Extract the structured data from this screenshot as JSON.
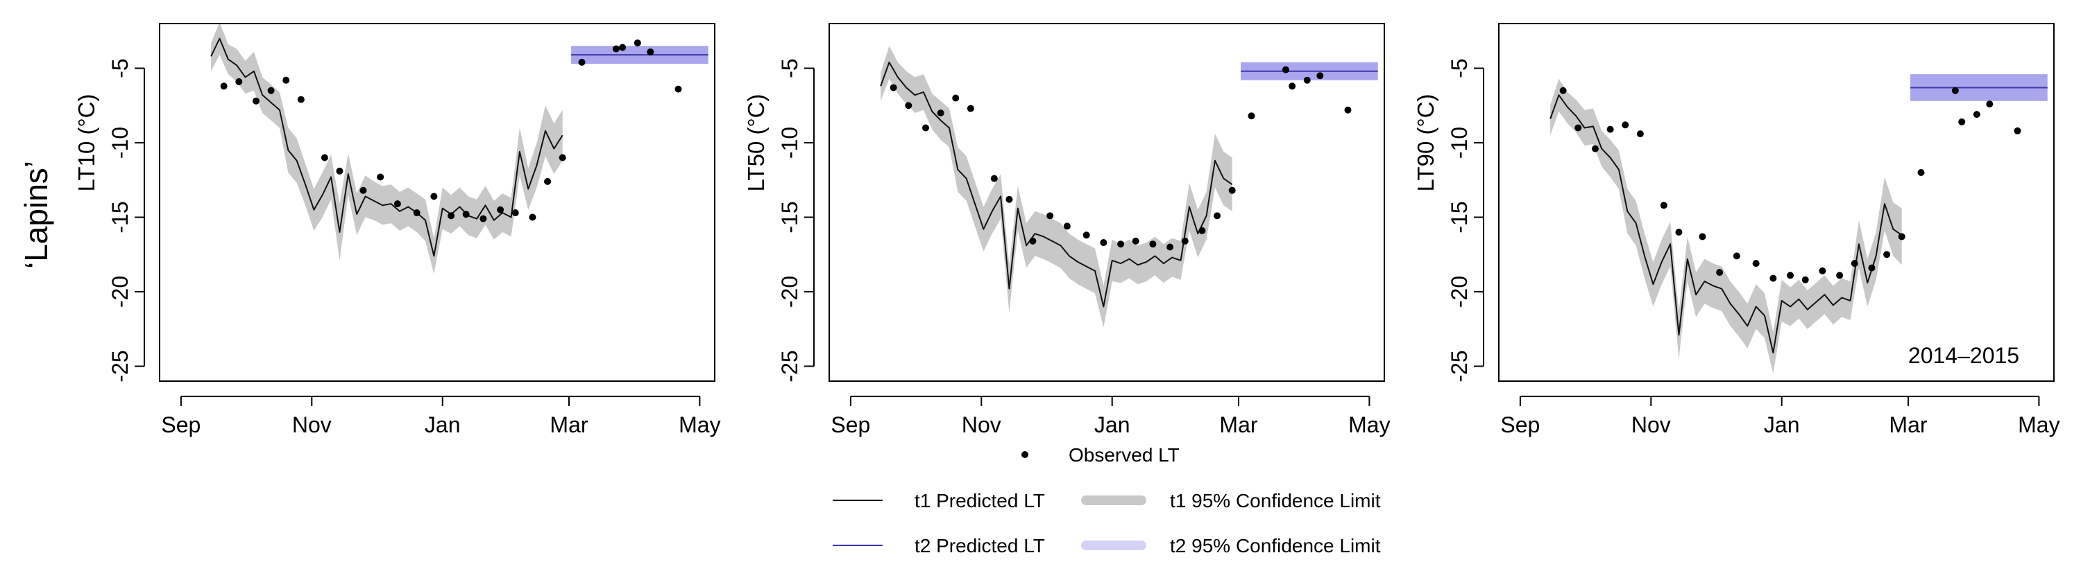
{
  "figure": {
    "cultivar_label": "‘Lapins’",
    "season_label": "2014–2015",
    "colors": {
      "t1_line": "#111111",
      "t1_band": "#c8c8c8",
      "t2_line": "#3a36a8",
      "t2_band": "#a9a6ee",
      "t2_band_legend": "#d4d2f6",
      "observed": "#000000"
    }
  },
  "legend": {
    "observed": "Observed LT",
    "t1_line": "t1 Predicted LT",
    "t1_band": "t1 95% Confidence Limit",
    "t2_line": "t2 Predicted LT",
    "t2_band": "t2 95% Confidence Limit"
  },
  "chart_data": [
    {
      "type": "line",
      "ylabel": "LT10 (°C)",
      "x_ticks": [
        "Sep",
        "Nov",
        "Jan",
        "Mar",
        "May"
      ],
      "x_tick_days": [
        0,
        61,
        122,
        181,
        242
      ],
      "y_ticks": [
        "-5",
        "-10",
        "-15",
        "-20",
        "-25"
      ],
      "y_tick_values": [
        -5,
        -10,
        -15,
        -20,
        -25
      ],
      "ylim": [
        -26,
        -2
      ],
      "xlim": [
        -10,
        249
      ],
      "t1_predicted": {
        "x": [
          14,
          18,
          22,
          26,
          30,
          34,
          38,
          42,
          46,
          50,
          54,
          58,
          62,
          66,
          70,
          74,
          78,
          82,
          86,
          90,
          94,
          98,
          102,
          106,
          110,
          114,
          118,
          122,
          126,
          130,
          134,
          138,
          142,
          146,
          150,
          154,
          158,
          162,
          166,
          170,
          174,
          178
        ],
        "y": [
          -4.2,
          -3.0,
          -4.4,
          -4.8,
          -5.6,
          -5.2,
          -6.8,
          -7.3,
          -7.8,
          -10.5,
          -11.2,
          -12.8,
          -14.5,
          -13.5,
          -12.3,
          -16.0,
          -12.1,
          -14.8,
          -13.6,
          -13.9,
          -14.2,
          -14.1,
          -14.6,
          -14.3,
          -14.7,
          -15.2,
          -17.6,
          -14.4,
          -14.8,
          -14.3,
          -14.9,
          -15.1,
          -14.2,
          -15.2,
          -14.7,
          -15.0,
          -10.6,
          -13.1,
          -11.5,
          -9.2,
          -10.4,
          -9.5
        ],
        "ci_low": [
          -5.2,
          -4.1,
          -5.4,
          -5.9,
          -6.7,
          -6.5,
          -8.0,
          -8.5,
          -9.0,
          -12.0,
          -12.7,
          -14.2,
          -15.9,
          -15.0,
          -13.8,
          -17.9,
          -13.5,
          -16.2,
          -15.0,
          -15.2,
          -15.5,
          -15.4,
          -15.9,
          -15.6,
          -16.0,
          -16.6,
          -18.8,
          -15.8,
          -16.1,
          -15.6,
          -16.2,
          -16.4,
          -15.5,
          -16.5,
          -16.0,
          -16.3,
          -12.2,
          -14.5,
          -13.0,
          -10.9,
          -12.1,
          -11.2
        ],
        "ci_high": [
          -3.3,
          -1.9,
          -3.4,
          -3.7,
          -4.5,
          -3.9,
          -5.6,
          -6.1,
          -6.6,
          -9.0,
          -9.7,
          -11.4,
          -13.1,
          -12.0,
          -10.8,
          -14.1,
          -10.7,
          -13.4,
          -12.2,
          -12.6,
          -12.9,
          -12.8,
          -13.3,
          -13.0,
          -13.4,
          -13.8,
          -16.4,
          -13.0,
          -13.5,
          -13.0,
          -13.6,
          -13.8,
          -12.9,
          -13.9,
          -13.4,
          -13.7,
          -9.0,
          -11.7,
          -10.0,
          -7.5,
          -8.7,
          -7.8
        ]
      },
      "t2_predicted": {
        "x_start": 182,
        "x_end": 246,
        "y": -4.1,
        "ci_low": -4.7,
        "ci_high": -3.5
      },
      "observed": {
        "x": [
          20,
          27,
          35,
          42,
          49,
          56,
          67,
          74,
          85,
          93,
          101,
          110,
          118,
          126,
          133,
          141,
          149,
          156,
          164,
          171,
          178,
          187,
          203,
          206,
          213,
          219,
          232
        ],
        "y": [
          -6.2,
          -5.9,
          -7.2,
          -6.5,
          -5.8,
          -7.1,
          -11.0,
          -11.9,
          -13.2,
          -12.3,
          -14.1,
          -14.7,
          -13.6,
          -14.9,
          -14.8,
          -15.1,
          -14.5,
          -14.7,
          -15.0,
          -12.6,
          -11.0,
          -4.6,
          -3.7,
          -3.6,
          -3.3,
          -3.9,
          -6.4
        ]
      }
    },
    {
      "type": "line",
      "ylabel": "LT50 (°C)",
      "x_ticks": [
        "Sep",
        "Nov",
        "Jan",
        "Mar",
        "May"
      ],
      "x_tick_days": [
        0,
        61,
        122,
        181,
        242
      ],
      "y_ticks": [
        "-5",
        "-10",
        "-15",
        "-20",
        "-25"
      ],
      "y_tick_values": [
        -5,
        -10,
        -15,
        -20,
        -25
      ],
      "ylim": [
        -26,
        -2
      ],
      "xlim": [
        -10,
        249
      ],
      "t1_predicted": {
        "x": [
          14,
          18,
          22,
          26,
          30,
          34,
          38,
          42,
          46,
          50,
          54,
          58,
          62,
          66,
          70,
          74,
          78,
          82,
          86,
          90,
          94,
          98,
          102,
          106,
          110,
          114,
          118,
          122,
          126,
          130,
          134,
          138,
          142,
          146,
          150,
          154,
          158,
          162,
          166,
          170,
          174,
          178
        ],
        "y": [
          -6.2,
          -4.6,
          -5.6,
          -6.3,
          -6.8,
          -6.6,
          -7.9,
          -8.5,
          -9.0,
          -11.8,
          -12.4,
          -14.1,
          -15.8,
          -14.6,
          -13.6,
          -19.8,
          -14.4,
          -16.9,
          -16.1,
          -16.3,
          -16.6,
          -16.9,
          -17.6,
          -18.0,
          -18.3,
          -18.6,
          -21.0,
          -17.9,
          -18.1,
          -17.8,
          -18.2,
          -18.0,
          -17.6,
          -18.1,
          -17.7,
          -17.9,
          -14.3,
          -16.1,
          -14.9,
          -11.2,
          -12.4,
          -12.8
        ],
        "ci_low": [
          -7.2,
          -5.7,
          -6.7,
          -7.4,
          -8.0,
          -7.8,
          -9.1,
          -9.8,
          -10.3,
          -13.3,
          -13.9,
          -15.6,
          -17.3,
          -16.1,
          -15.1,
          -21.4,
          -15.9,
          -18.4,
          -17.6,
          -17.8,
          -18.1,
          -18.4,
          -19.1,
          -19.5,
          -19.8,
          -20.1,
          -22.4,
          -19.3,
          -19.4,
          -19.1,
          -19.5,
          -19.3,
          -18.9,
          -19.4,
          -19.0,
          -19.2,
          -15.9,
          -17.7,
          -16.5,
          -13.0,
          -14.2,
          -14.6
        ],
        "ci_high": [
          -5.3,
          -3.5,
          -4.6,
          -5.2,
          -5.6,
          -5.4,
          -6.7,
          -7.2,
          -7.7,
          -10.3,
          -10.9,
          -12.6,
          -14.3,
          -13.1,
          -12.1,
          -18.2,
          -12.9,
          -15.4,
          -14.6,
          -14.8,
          -15.1,
          -15.4,
          -16.1,
          -16.5,
          -16.8,
          -17.1,
          -19.6,
          -16.5,
          -16.8,
          -16.5,
          -16.9,
          -16.7,
          -16.3,
          -16.8,
          -16.4,
          -16.6,
          -12.7,
          -14.5,
          -13.3,
          -9.4,
          -10.6,
          -11.0
        ]
      },
      "t2_predicted": {
        "x_start": 182,
        "x_end": 246,
        "y": -5.2,
        "ci_low": -5.8,
        "ci_high": -4.6
      },
      "observed": {
        "x": [
          20,
          27,
          35,
          42,
          49,
          56,
          67,
          74,
          85,
          93,
          101,
          110,
          118,
          126,
          133,
          141,
          149,
          156,
          164,
          171,
          178,
          187,
          203,
          206,
          213,
          219,
          232
        ],
        "y": [
          -6.3,
          -7.5,
          -9.0,
          -8.0,
          -7.0,
          -7.7,
          -12.4,
          -13.8,
          -16.6,
          -14.9,
          -15.6,
          -16.2,
          -16.7,
          -16.8,
          -16.6,
          -16.8,
          -17.0,
          -16.6,
          -15.9,
          -14.9,
          -13.2,
          -8.2,
          -5.1,
          -6.2,
          -5.8,
          -5.5,
          -7.8
        ]
      }
    },
    {
      "type": "line",
      "ylabel": "LT90 (°C)",
      "x_ticks": [
        "Sep",
        "Nov",
        "Jan",
        "Mar",
        "May"
      ],
      "x_tick_days": [
        0,
        61,
        122,
        181,
        242
      ],
      "y_ticks": [
        "-5",
        "-10",
        "-15",
        "-20",
        "-25"
      ],
      "y_tick_values": [
        -5,
        -10,
        -15,
        -20,
        -25
      ],
      "ylim": [
        -26,
        -2
      ],
      "xlim": [
        -10,
        249
      ],
      "t1_predicted": {
        "x": [
          14,
          18,
          22,
          26,
          30,
          34,
          38,
          42,
          46,
          50,
          54,
          58,
          62,
          66,
          70,
          74,
          78,
          82,
          86,
          90,
          94,
          98,
          102,
          106,
          110,
          114,
          118,
          122,
          126,
          130,
          134,
          138,
          142,
          146,
          150,
          154,
          158,
          162,
          166,
          170,
          174,
          178
        ],
        "y": [
          -8.4,
          -6.8,
          -7.6,
          -8.2,
          -9.0,
          -8.9,
          -10.4,
          -11.0,
          -11.8,
          -14.6,
          -15.4,
          -17.6,
          -19.5,
          -18.0,
          -16.8,
          -22.9,
          -17.8,
          -20.2,
          -19.3,
          -19.6,
          -19.8,
          -20.8,
          -21.5,
          -22.3,
          -21.0,
          -21.6,
          -24.1,
          -20.6,
          -21.0,
          -20.5,
          -21.2,
          -20.7,
          -20.2,
          -20.9,
          -20.4,
          -20.6,
          -16.8,
          -19.4,
          -17.6,
          -14.1,
          -15.8,
          -16.2
        ],
        "ci_low": [
          -9.5,
          -7.9,
          -8.7,
          -9.3,
          -10.2,
          -10.1,
          -11.6,
          -12.3,
          -13.1,
          -16.1,
          -16.9,
          -19.1,
          -21.0,
          -19.5,
          -18.3,
          -24.5,
          -19.3,
          -21.7,
          -20.8,
          -21.1,
          -21.3,
          -22.3,
          -23.0,
          -23.8,
          -22.5,
          -23.1,
          -25.5,
          -22.0,
          -22.3,
          -21.8,
          -22.5,
          -22.0,
          -21.5,
          -22.2,
          -21.7,
          -21.9,
          -18.4,
          -21.0,
          -19.2,
          -15.9,
          -17.6,
          -18.2
        ],
        "ci_high": [
          -7.5,
          -5.7,
          -6.6,
          -7.1,
          -7.8,
          -7.7,
          -9.2,
          -9.8,
          -10.5,
          -13.1,
          -13.9,
          -16.1,
          -18.0,
          -16.5,
          -15.3,
          -21.3,
          -16.3,
          -18.7,
          -17.8,
          -18.1,
          -18.3,
          -19.3,
          -20.0,
          -20.8,
          -19.5,
          -20.1,
          -22.7,
          -19.2,
          -19.7,
          -19.2,
          -19.9,
          -19.4,
          -18.9,
          -19.6,
          -19.1,
          -19.3,
          -15.2,
          -17.8,
          -16.0,
          -12.3,
          -14.0,
          -14.4
        ]
      },
      "t2_predicted": {
        "x_start": 182,
        "x_end": 246,
        "y": -6.3,
        "ci_low": -7.2,
        "ci_high": -5.4
      },
      "observed": {
        "x": [
          20,
          27,
          35,
          42,
          49,
          56,
          67,
          74,
          85,
          93,
          101,
          110,
          118,
          126,
          133,
          141,
          149,
          156,
          164,
          171,
          178,
          187,
          203,
          206,
          213,
          219,
          232
        ],
        "y": [
          -6.5,
          -9.0,
          -10.4,
          -9.1,
          -8.8,
          -9.4,
          -14.2,
          -16.0,
          -16.3,
          -18.7,
          -17.6,
          -18.1,
          -19.1,
          -18.9,
          -19.2,
          -18.6,
          -18.9,
          -18.1,
          -18.4,
          -17.5,
          -16.3,
          -12.0,
          -6.5,
          -8.6,
          -8.1,
          -7.4,
          -9.2
        ]
      }
    }
  ]
}
